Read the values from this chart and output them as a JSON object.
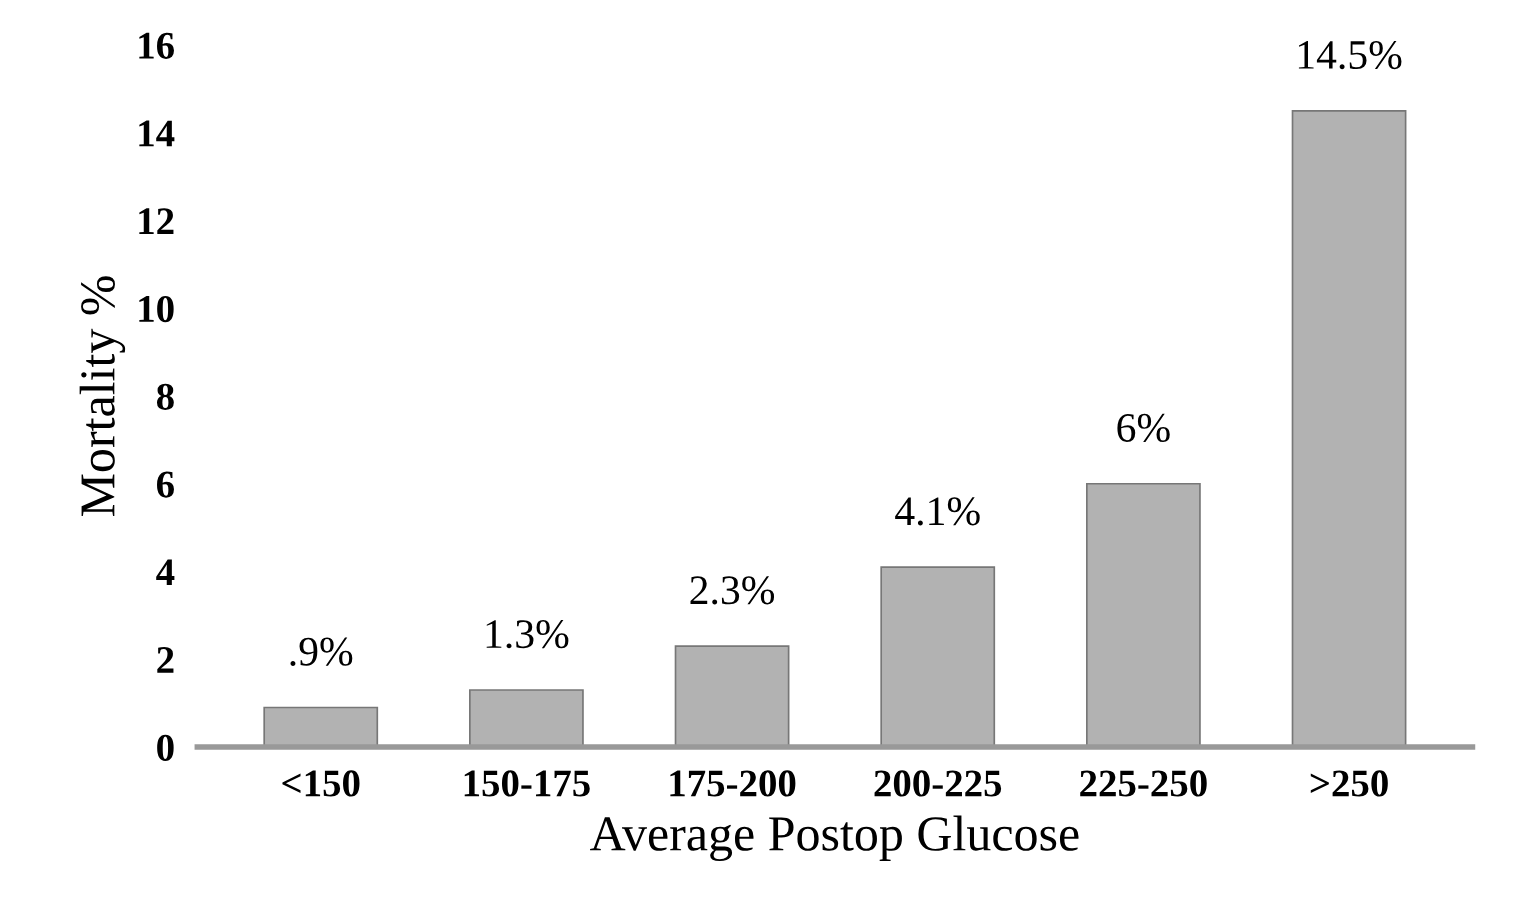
{
  "chart_data": {
    "type": "bar",
    "xlabel": "Average Postop Glucose",
    "ylabel": "Mortality %",
    "categories": [
      "<150",
      "150-175",
      "175-200",
      "200-225",
      "225-250",
      ">250"
    ],
    "values": [
      0.9,
      1.3,
      2.3,
      4.1,
      6,
      14.5
    ],
    "value_labels": [
      ".9%",
      "1.3%",
      "2.3%",
      "4.1%",
      "6%",
      "14.5%"
    ],
    "color": "#b2b2b2",
    "ylim": [
      0,
      16
    ],
    "yticks": [
      0,
      2,
      4,
      6,
      8,
      10,
      12,
      14,
      16
    ],
    "grid": false
  }
}
